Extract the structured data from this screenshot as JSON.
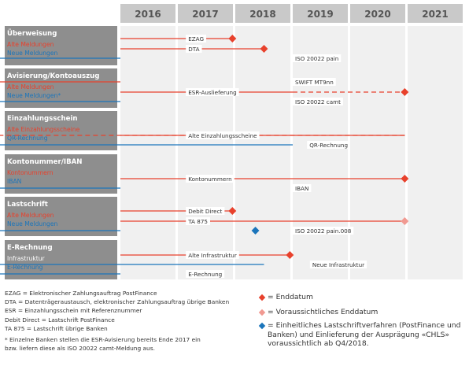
{
  "years": [
    "2016",
    "2017",
    "2018",
    "2019",
    "2020",
    "2021"
  ],
  "colors": {
    "red": "#e8412c",
    "blue": "#1b75bb",
    "pink": "#f19a92",
    "header": "#c9c9c9",
    "label_bg": "#8e8e8e",
    "col_bg": "#f0f0f0",
    "year_text": "#555555"
  },
  "sections": [
    {
      "title": "Überweisung",
      "sub": [
        {
          "text": "Alte Meldungen",
          "color": "red"
        },
        {
          "text": "Neue Meldungen",
          "color": "blue"
        }
      ]
    },
    {
      "title": "Avisierung/Kontoauszug",
      "sub": [
        {
          "text": "Alte Meldungen",
          "color": "red"
        },
        {
          "text": "Neue Meldungen*",
          "color": "blue"
        }
      ]
    },
    {
      "title": "Einzahlungsschein",
      "sub": [
        {
          "text": "Alte Einzahlungsscheine",
          "color": "red"
        },
        {
          "text": "QR-Rechnung",
          "color": "blue"
        }
      ]
    },
    {
      "title": "Kontonummer/IBAN",
      "sub": [
        {
          "text": "Kontonummern",
          "color": "red"
        },
        {
          "text": "IBAN",
          "color": "blue"
        }
      ]
    },
    {
      "title": "Lastschrift",
      "sub": [
        {
          "text": "Alte Meldungen",
          "color": "red"
        },
        {
          "text": "Neue Meldungen",
          "color": "blue"
        }
      ]
    },
    {
      "title": "E-Rechnung",
      "sub": [
        {
          "text": "Infrastruktur",
          "color": "white"
        },
        {
          "text": "E-Rechnung",
          "color": "blue"
        }
      ]
    }
  ],
  "bar_labels": [
    "EZAG",
    "DTA",
    "ISO 20022 pain",
    "SWIFT MT9nn",
    "ESR-Auslieferung",
    "ISO 20022 camt",
    "Alte Einzahlungsscheine",
    "QR-Rechnung",
    "Kontonummern",
    "IBAN",
    "Debit Direct",
    "TA 875",
    "ISO 20022 pain.008",
    "Alte Infrastruktur",
    "Neue Infrastruktur",
    "E-Rechnung"
  ],
  "abbreviations": [
    "EZAG = Elektronischer Zahlungsauftrag PostFinance",
    "DTA = Datenträgeraustausch, elektronischer Zahlungsauftrag übrige Banken",
    "ESR = Einzahlungsschein mit Referenznummer",
    "Debit Direct = Lastschrift PostFinance",
    "TA 875 = Lastschrift übrige Banken",
    "* Einzelne Banken stellen die ESR-Avisierung bereits Ende 2017 ein",
    "bzw. liefern diese als ISO 20022 camt-Meldung aus."
  ],
  "legend": [
    {
      "marker": "red",
      "text": "= Enddatum"
    },
    {
      "marker": "pink",
      "text": "= Voraussichtliches Enddatum"
    },
    {
      "marker": "blue",
      "text": "= Einheitliches Lastschriftverfahren (PostFinance und Banken) und Einlieferung der Ausprägung «CHLS» voraussichtlich ab Q4/2018."
    }
  ]
}
